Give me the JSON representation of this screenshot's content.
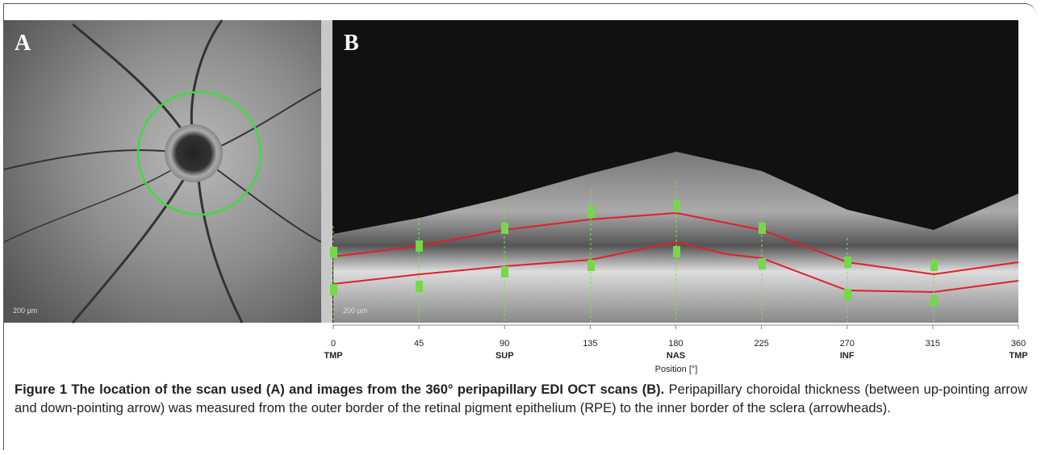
{
  "figure": {
    "panel_a": {
      "label": "A",
      "scale_bar": "200 µm"
    },
    "panel_b": {
      "label": "B",
      "scale_bar": "200 µm",
      "axis": {
        "xlim": [
          0,
          360
        ],
        "ticks": [
          0,
          45,
          90,
          135,
          180,
          225,
          270,
          315,
          360
        ],
        "regions": [
          {
            "value": 0,
            "label": "TMP"
          },
          {
            "value": 90,
            "label": "SUP"
          },
          {
            "value": 180,
            "label": "NAS"
          },
          {
            "value": 270,
            "label": "INF"
          },
          {
            "value": 360,
            "label": "TMP"
          }
        ],
        "label": "Position [°]"
      }
    },
    "caption": {
      "title": "Figure 1 The location of the scan used (A) and images from the 360° peripapillary EDI OCT scans (B).",
      "text": "Peripapillary choroidal thickness (between up-pointing arrow and down-pointing arrow) was measured from the outer border of the retinal pigment epithelium (RPE) to the inner border of the sclera (arrowheads)."
    }
  }
}
